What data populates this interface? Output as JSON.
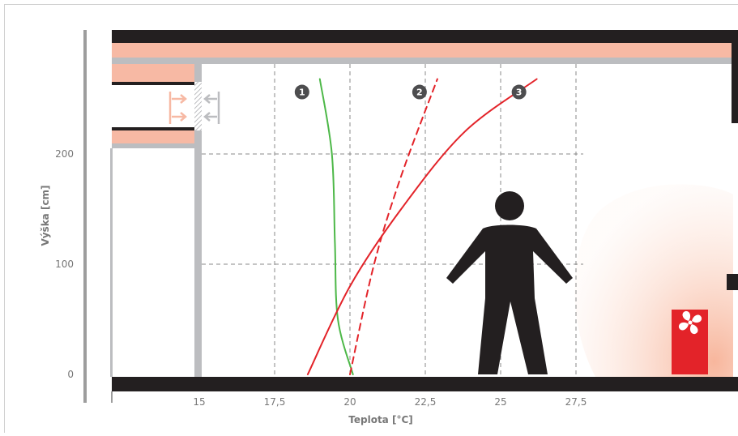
{
  "chart_data": {
    "type": "line",
    "xlabel": "Teplota [°C]",
    "ylabel": "Výška [cm]",
    "x_ticks": [
      "15",
      "17,5",
      "20",
      "22,5",
      "25",
      "27,5"
    ],
    "y_ticks": [
      "0",
      "100",
      "200"
    ],
    "xlim": [
      12.5,
      32
    ],
    "ylim": [
      0,
      270
    ],
    "grid": "dashed",
    "series": [
      {
        "label": "1",
        "color": "#4db848",
        "style": "solid",
        "points": [
          [
            19.0,
            268
          ],
          [
            19.4,
            200
          ],
          [
            19.5,
            120
          ],
          [
            19.6,
            50
          ],
          [
            20.1,
            0
          ]
        ]
      },
      {
        "label": "2",
        "color": "#e32329",
        "style": "dashed",
        "points": [
          [
            20.0,
            0
          ],
          [
            20.8,
            100
          ],
          [
            21.7,
            180
          ],
          [
            22.9,
            268
          ]
        ]
      },
      {
        "label": "3",
        "color": "#e32329",
        "style": "solid",
        "points": [
          [
            18.6,
            0
          ],
          [
            20.0,
            80
          ],
          [
            21.7,
            150
          ],
          [
            23.8,
            220
          ],
          [
            26.2,
            268
          ]
        ]
      }
    ]
  },
  "colors": {
    "wall": "#231f20",
    "insulation": "#f7b9a4",
    "plaster": "#bcbdc0",
    "warm_zone": "#fbd7c8",
    "heater": "#e32329",
    "figure": "#231f20",
    "grid": "#888888"
  },
  "icons": {
    "heater": "fan-heater-icon",
    "person": "person-silhouette-icon",
    "vent": "vent-airflow-arrows-icon"
  }
}
